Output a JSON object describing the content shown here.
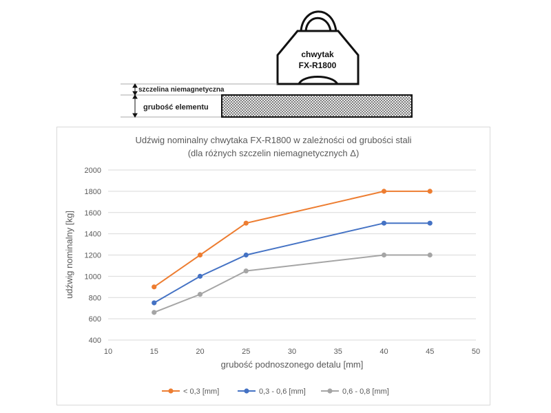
{
  "diagram": {
    "gripper_label_line1": "chwytak",
    "gripper_label_line2": "FX-R1800",
    "gap_label": "szczelina niemagnetyczna",
    "thickness_label": "grubość elementu"
  },
  "chart_data": {
    "type": "line",
    "title": "Udźwig nominalny chwytaka FX-R1800 w zależności od grubości stali",
    "subtitle": "(dla różnych szczelin niemagnetycznych Δ)",
    "xlabel": "grubość podnoszonego detalu [mm]",
    "ylabel": "udźwig nominalny [kg]",
    "xlim": [
      10,
      50
    ],
    "ylim": [
      400,
      2000
    ],
    "x_ticks": [
      "10",
      "15",
      "20",
      "25",
      "30",
      "35",
      "40",
      "45",
      "50"
    ],
    "y_ticks": [
      "400",
      "600",
      "800",
      "1000",
      "1200",
      "1400",
      "1600",
      "1800",
      "2000"
    ],
    "grid": "horizontal",
    "legend_position": "bottom",
    "x": [
      15,
      20,
      25,
      40,
      45
    ],
    "series": [
      {
        "name": "< 0,3 [mm]",
        "color": "#ed7d31",
        "values": [
          900,
          1200,
          1500,
          1800,
          1800
        ]
      },
      {
        "name": "0,3 - 0,6 [mm]",
        "color": "#4472c4",
        "values": [
          750,
          1000,
          1200,
          1500,
          1500
        ]
      },
      {
        "name": "0,6 - 0,8 [mm]",
        "color": "#a5a5a5",
        "values": [
          660,
          830,
          1050,
          1200,
          1200
        ]
      }
    ]
  }
}
